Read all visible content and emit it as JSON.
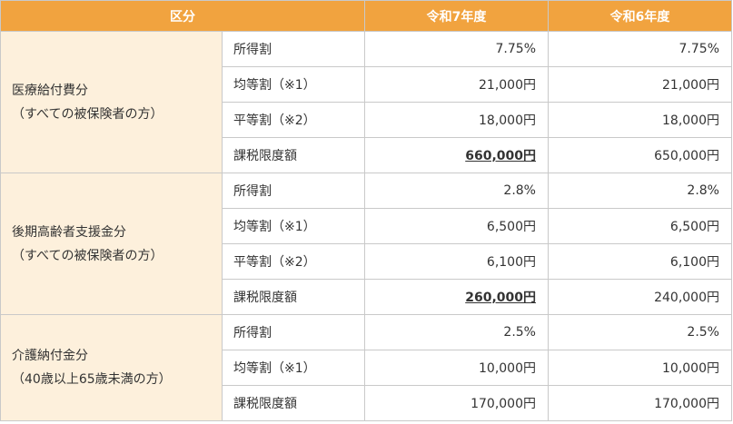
{
  "header": {
    "category": "区分",
    "year_r7": "令和7年度",
    "year_r6": "令和6年度"
  },
  "groups": [
    {
      "name": "医療給付費分",
      "sub": "（すべての被保険者の方）",
      "rows": [
        {
          "item": "所得割",
          "r7": "7.75%",
          "r6": "7.75%"
        },
        {
          "item": "均等割（※1）",
          "r7": "21,000円",
          "r6": "21,000円"
        },
        {
          "item": "平等割（※2）",
          "r7": "18,000円",
          "r6": "18,000円"
        },
        {
          "item": "課税限度額",
          "r7": "660,000円",
          "r6": "650,000円"
        }
      ]
    },
    {
      "name": "後期高齢者支援金分",
      "sub": "（すべての被保険者の方）",
      "rows": [
        {
          "item": "所得割",
          "r7": "2.8%",
          "r6": "2.8%"
        },
        {
          "item": "均等割（※1）",
          "r7": "6,500円",
          "r6": "6,500円"
        },
        {
          "item": "平等割（※2）",
          "r7": "6,100円",
          "r6": "6,100円"
        },
        {
          "item": "課税限度額",
          "r7": "260,000円",
          "r6": "240,000円"
        }
      ]
    },
    {
      "name": "介護納付金分",
      "sub": "（40歳以上65歳未満の方）",
      "rows": [
        {
          "item": "所得割",
          "r7": "2.5%",
          "r6": "2.5%"
        },
        {
          "item": "均等割（※1）",
          "r7": "10,000円",
          "r6": "10,000円"
        },
        {
          "item": "課税限度額",
          "r7": "170,000円",
          "r6": "170,000円"
        }
      ]
    }
  ]
}
